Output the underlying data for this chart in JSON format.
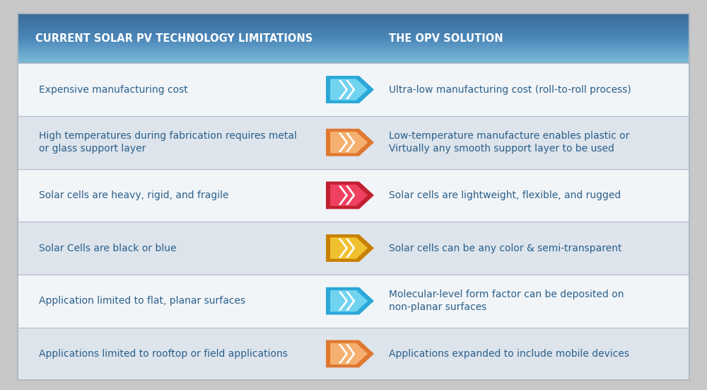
{
  "title_left": "CURRENT SOLAR PV TECHNOLOGY LIMITATIONS",
  "title_right": "THE OPV SOLUTION",
  "header_gradient_top": "#3a6b96",
  "header_gradient_mid": "#4a85b8",
  "header_gradient_bot": "#7abcd8",
  "header_text_color": "#ffffff",
  "rows": [
    {
      "limitation": "Expensive manufacturing cost",
      "solution": "Ultra-low manufacturing cost (roll-to-roll process)",
      "arrow_outer": "#2aa8d8",
      "arrow_inner": "#70d4f0",
      "row_bg": "#f2f5f8"
    },
    {
      "limitation": "High temperatures during fabrication requires metal\nor glass support layer",
      "solution": "Low-temperature manufacture enables plastic or\nVirtually any smooth support layer to be used",
      "arrow_outer": "#e07830",
      "arrow_inner": "#f5b070",
      "row_bg": "#dde4ec"
    },
    {
      "limitation": "Solar cells are heavy, rigid, and fragile",
      "solution": "Solar cells are lightweight, flexible, and rugged",
      "arrow_outer": "#c02030",
      "arrow_inner": "#f04060",
      "row_bg": "#f2f5f8"
    },
    {
      "limitation": "Solar Cells are black or blue",
      "solution": "Solar cells can be any color & semi-transparent",
      "arrow_outer": "#c88000",
      "arrow_inner": "#f0c030",
      "row_bg": "#dde4ec"
    },
    {
      "limitation": "Application limited to flat, planar surfaces",
      "solution": "Molecular-level form factor can be deposited on\nnon-planar surfaces",
      "arrow_outer": "#2aa8d8",
      "arrow_inner": "#70d4f0",
      "row_bg": "#f2f5f8"
    },
    {
      "limitation": "Applications limited to rooftop or field applications",
      "solution": "Applications expanded to include mobile devices",
      "arrow_outer": "#e07830",
      "arrow_inner": "#f5b070",
      "row_bg": "#dde4ec"
    }
  ],
  "text_color_dark": "#2a5f8a",
  "text_color_light": "#1a4a7a",
  "fig_width": 10.0,
  "fig_height": 5.51,
  "outer_bg": "#c8c8c8",
  "table_border": "#b0b8c0"
}
